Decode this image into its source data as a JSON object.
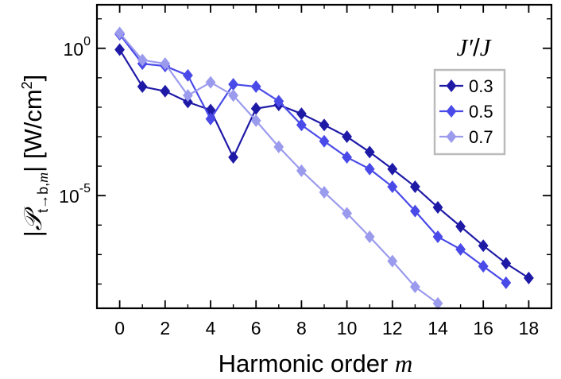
{
  "chart_data": {
    "type": "line",
    "title": "",
    "xlabel": "Harmonic order m",
    "ylabel": "|P_{t→b,m}| [W/cm^2]",
    "ylabel_parts": {
      "symbol": "𝒫",
      "subscript": "t→b,",
      "subscript_var": "m",
      "units": "[W/cm",
      "units_exp": "2",
      "units_close": "]"
    },
    "xlabel_parts": {
      "text": "Harmonic order ",
      "var": "m"
    },
    "yscale": "log",
    "xlim": [
      -1.0,
      19.0
    ],
    "ylim": [
      1.5e-09,
      30
    ],
    "xticks": [
      0,
      2,
      4,
      6,
      8,
      10,
      12,
      14,
      16,
      18
    ],
    "xtick_labels": [
      "0",
      "2",
      "4",
      "6",
      "8",
      "10",
      "12",
      "14",
      "16",
      "18"
    ],
    "minor_xticks": [
      1,
      3,
      5,
      7,
      9,
      11,
      13,
      15,
      17
    ],
    "yticks": [
      {
        "value": 1,
        "base": "10",
        "exp": "0"
      },
      {
        "value": 1e-05,
        "base": "10",
        "exp": "-5"
      }
    ],
    "legend": {
      "title": "J′/J",
      "title_var_1": "J′",
      "title_sep": "/",
      "title_var_2": "J",
      "position": "upper-right"
    },
    "series": [
      {
        "name": "0.3",
        "color": "#1f1aa6",
        "x": [
          0,
          1,
          2,
          3,
          4,
          5,
          6,
          7,
          8,
          9,
          10,
          11,
          12,
          13,
          14,
          15,
          16,
          17,
          18
        ],
        "y": [
          0.9,
          0.05,
          0.035,
          0.015,
          0.008,
          0.0002,
          0.009,
          0.012,
          0.006,
          0.0025,
          0.001,
          0.0003,
          8e-05,
          2e-05,
          4e-06,
          9e-07,
          2e-07,
          5e-08,
          1.6e-08
        ]
      },
      {
        "name": "0.5",
        "color": "#4a4ae8",
        "x": [
          0,
          1,
          2,
          3,
          4,
          5,
          6,
          7,
          8,
          9,
          10,
          11,
          12,
          13,
          14,
          15,
          16,
          17
        ],
        "y": [
          3.0,
          0.3,
          0.25,
          0.12,
          0.004,
          0.06,
          0.05,
          0.016,
          0.0025,
          0.0007,
          0.0002,
          8e-05,
          2e-05,
          3e-06,
          4e-07,
          1.5e-07,
          4e-08,
          1.1e-08
        ]
      },
      {
        "name": "0.7",
        "color": "#9b9bee",
        "x": [
          0,
          1,
          2,
          3,
          4,
          5,
          6,
          7,
          8,
          9,
          10,
          11,
          12,
          13,
          14
        ],
        "y": [
          3.3,
          0.4,
          0.3,
          0.025,
          0.07,
          0.025,
          0.0035,
          0.00045,
          7e-05,
          1.3e-05,
          2.5e-06,
          4e-07,
          6e-08,
          8e-09,
          2.2e-09
        ]
      }
    ]
  }
}
